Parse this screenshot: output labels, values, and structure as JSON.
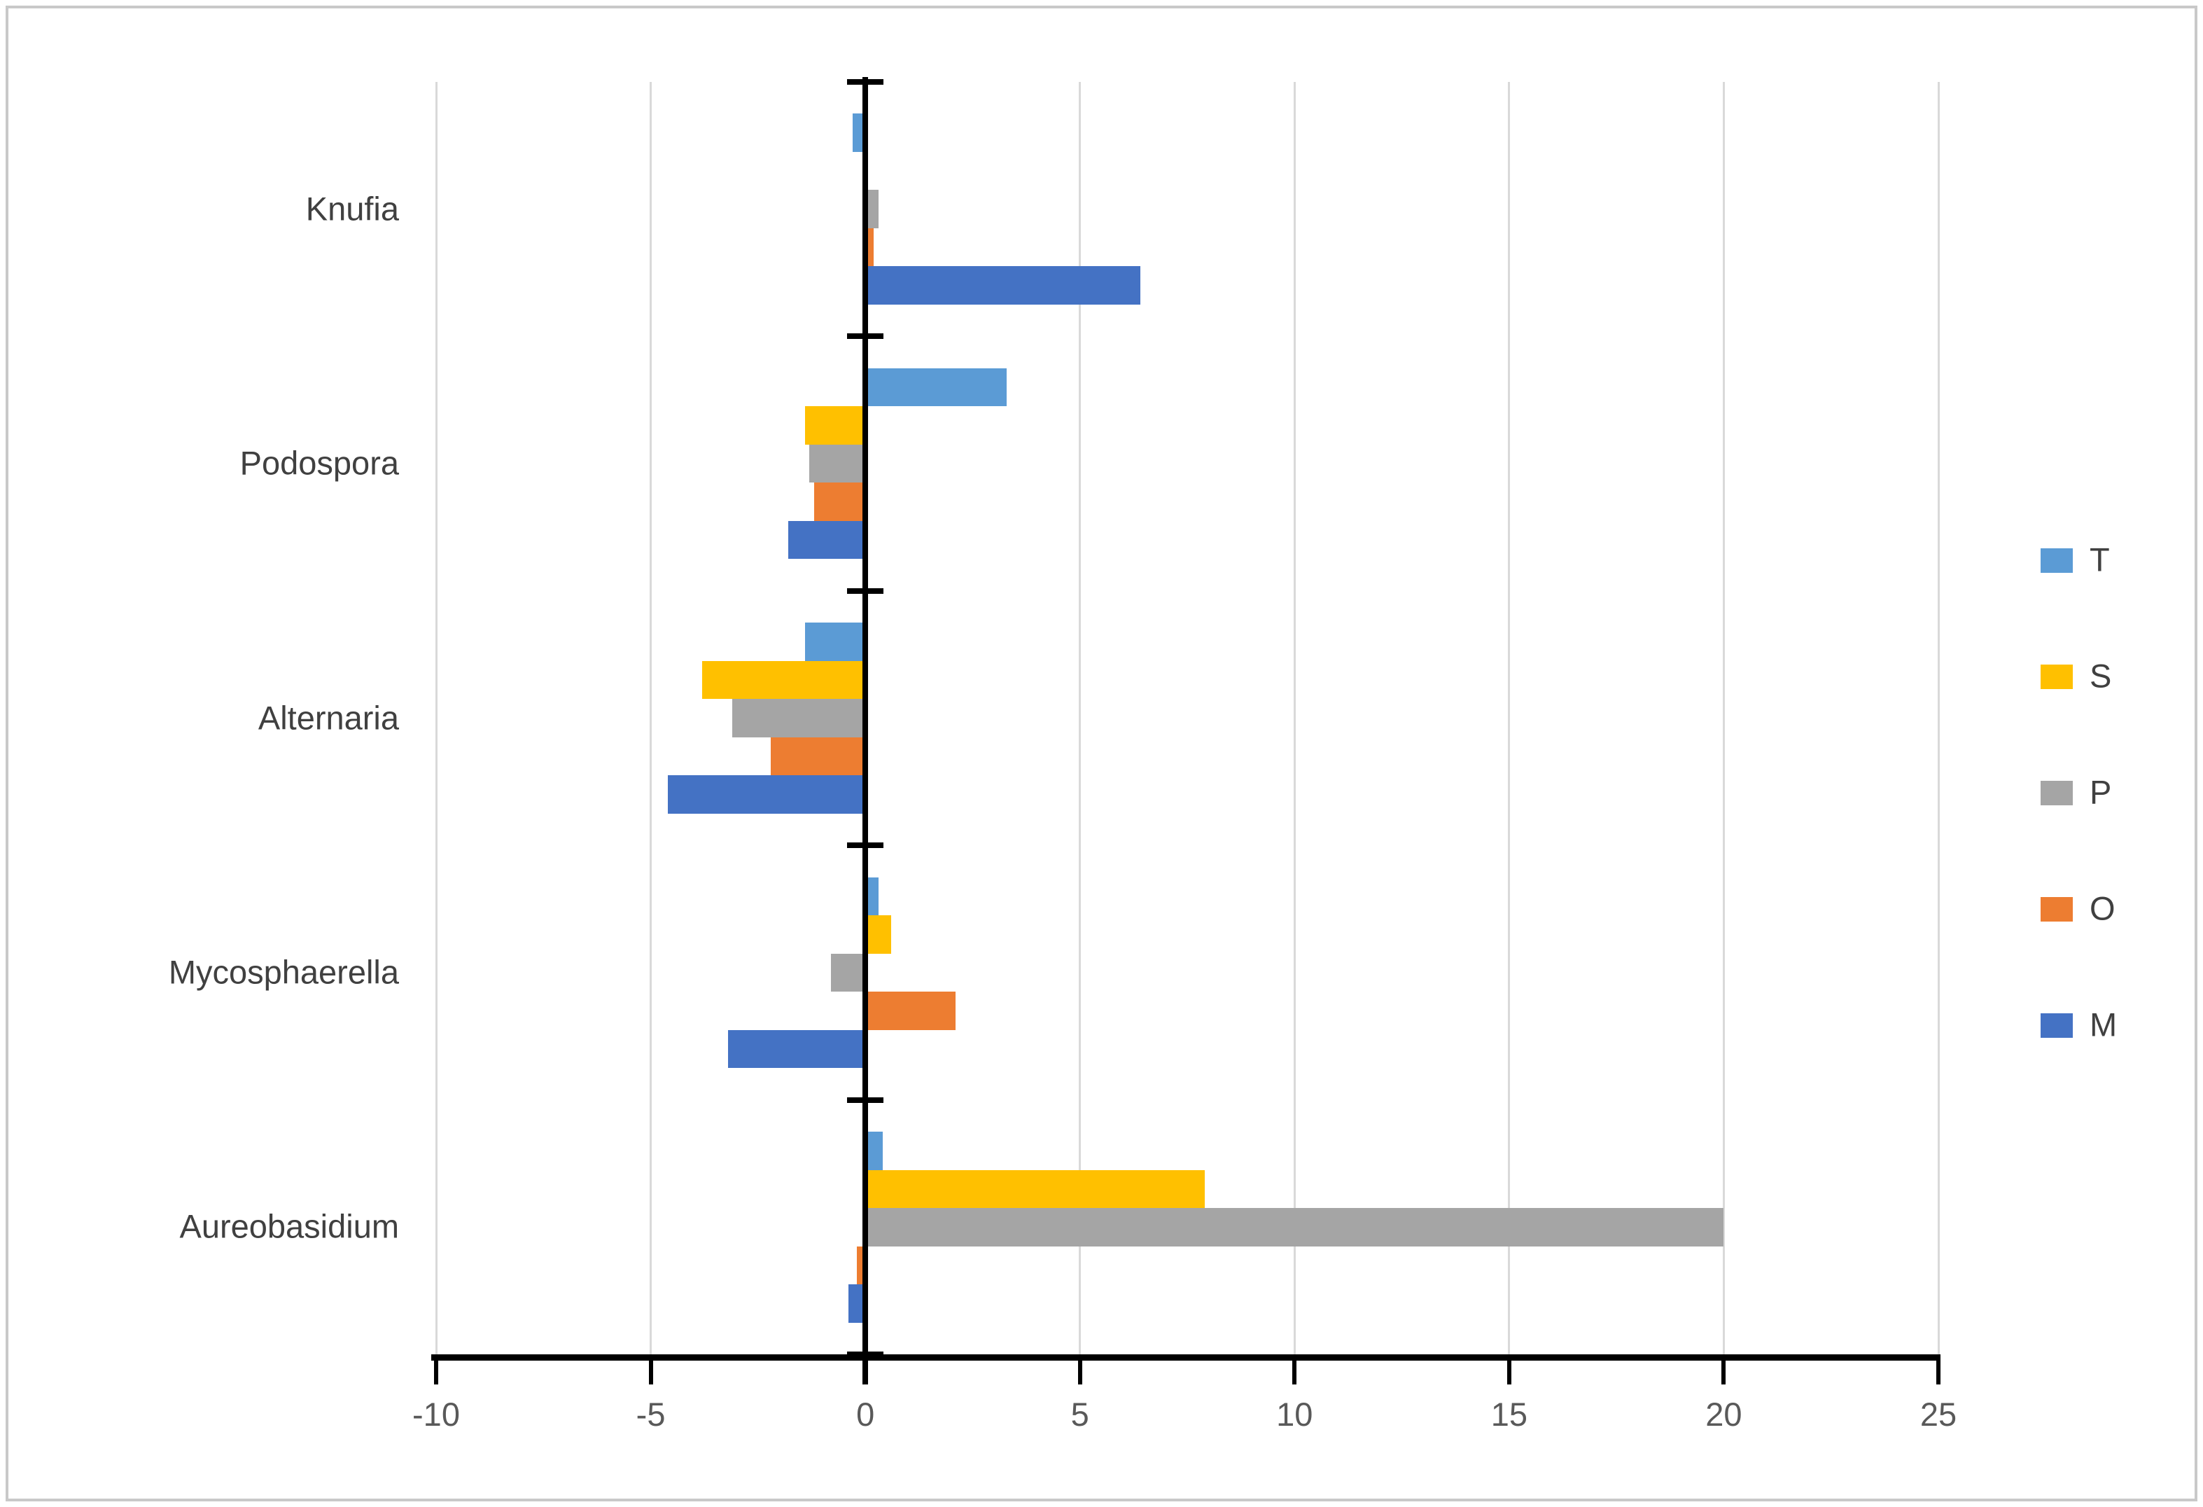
{
  "chart_data": {
    "type": "bar",
    "orientation": "horizontal",
    "title": "",
    "xlabel": "",
    "ylabel": "",
    "categories": [
      "Knufia",
      "Podospora",
      "Alternaria",
      "Mycosphaerella",
      "Aureobasidium"
    ],
    "series": [
      {
        "name": "T",
        "color": "#5B9BD5",
        "values": [
          -0.3,
          3.3,
          -1.4,
          0.3,
          0.4
        ]
      },
      {
        "name": "S",
        "color": "#FFC000",
        "values": [
          0,
          -1.4,
          -3.8,
          0.6,
          7.9
        ]
      },
      {
        "name": "P",
        "color": "#A5A5A5",
        "values": [
          0.3,
          -1.3,
          -3.1,
          -0.8,
          20
        ]
      },
      {
        "name": "O",
        "color": "#ED7D31",
        "values": [
          0.2,
          -1.2,
          -2.2,
          2.1,
          -0.2
        ]
      },
      {
        "name": "M",
        "color": "#4472C4",
        "values": [
          6.4,
          -1.8,
          -4.6,
          -3.2,
          -0.4
        ]
      }
    ],
    "x_axis": {
      "min": -10,
      "max": 25,
      "tick_step": 5,
      "tick_labels": [
        "-10",
        "-5",
        "0",
        "5",
        "10",
        "15",
        "20",
        "25"
      ]
    },
    "legend": {
      "position": "right",
      "entries": [
        "T",
        "S",
        "P",
        "O",
        "M"
      ]
    },
    "gridlines": true,
    "colors": {
      "gridline": "#d9d9d9",
      "axis": "#000000",
      "category_label_text": "#404040",
      "axis_tick_text": "#595959",
      "frame_border": "#c9c9c9",
      "background": "#ffffff"
    }
  }
}
